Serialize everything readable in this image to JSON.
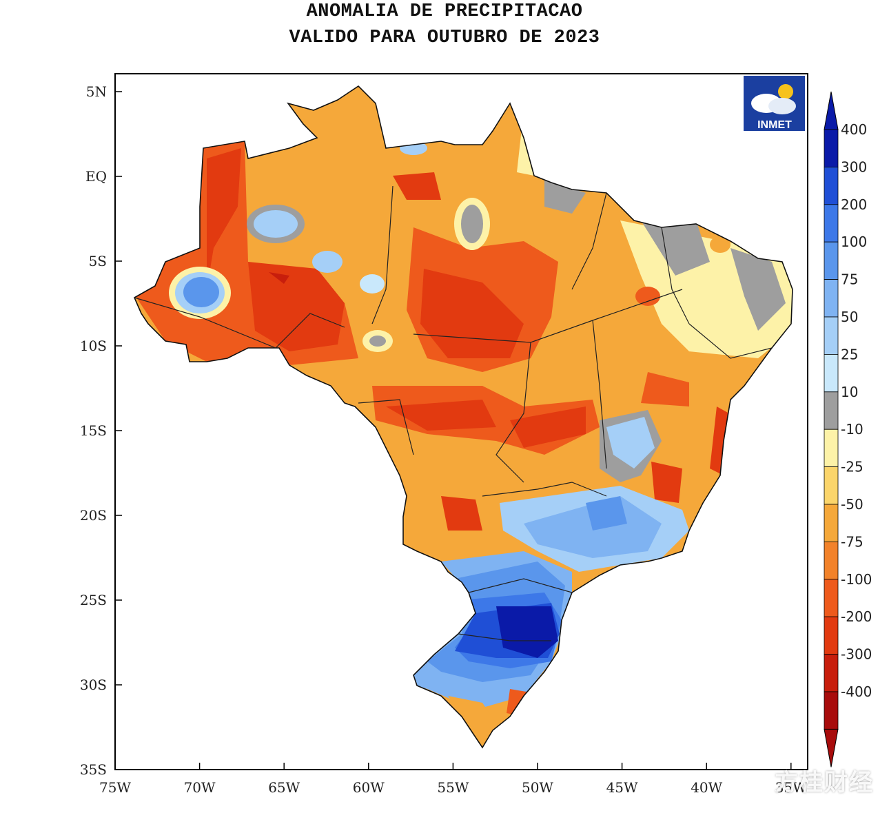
{
  "title": {
    "line1": "ANOMALIA DE PRECIPITACAO",
    "line2": "VALIDO PARA OUTUBRO DE 2023"
  },
  "logo": {
    "text": "INMET"
  },
  "watermark": "方桂财经",
  "axes": {
    "lat_ticks": [
      "5N",
      "EQ",
      "5S",
      "10S",
      "15S",
      "20S",
      "25S",
      "30S",
      "35S"
    ],
    "lon_ticks": [
      "75W",
      "70W",
      "65W",
      "60W",
      "55W",
      "50W",
      "45W",
      "40W",
      "35W"
    ]
  },
  "colorbar": {
    "labels": [
      "400",
      "300",
      "200",
      "100",
      "75",
      "50",
      "25",
      "10",
      "-10",
      "-25",
      "-50",
      "-75",
      "-100",
      "-200",
      "-300",
      "-400"
    ],
    "colors": [
      "#0a1aa8",
      "#1f4fd6",
      "#3d78e8",
      "#5a96ec",
      "#7fb3f2",
      "#a5cff7",
      "#c9e8fb",
      "#9e9e9e",
      "#fdf2a8",
      "#fbd56b",
      "#f5a83a",
      "#f2822a",
      "#ee5a1c",
      "#e23a10",
      "#c81e0c",
      "#a80c0c"
    ],
    "top_color": "#0a1aa8",
    "bottom_color": "#a80c0c"
  }
}
